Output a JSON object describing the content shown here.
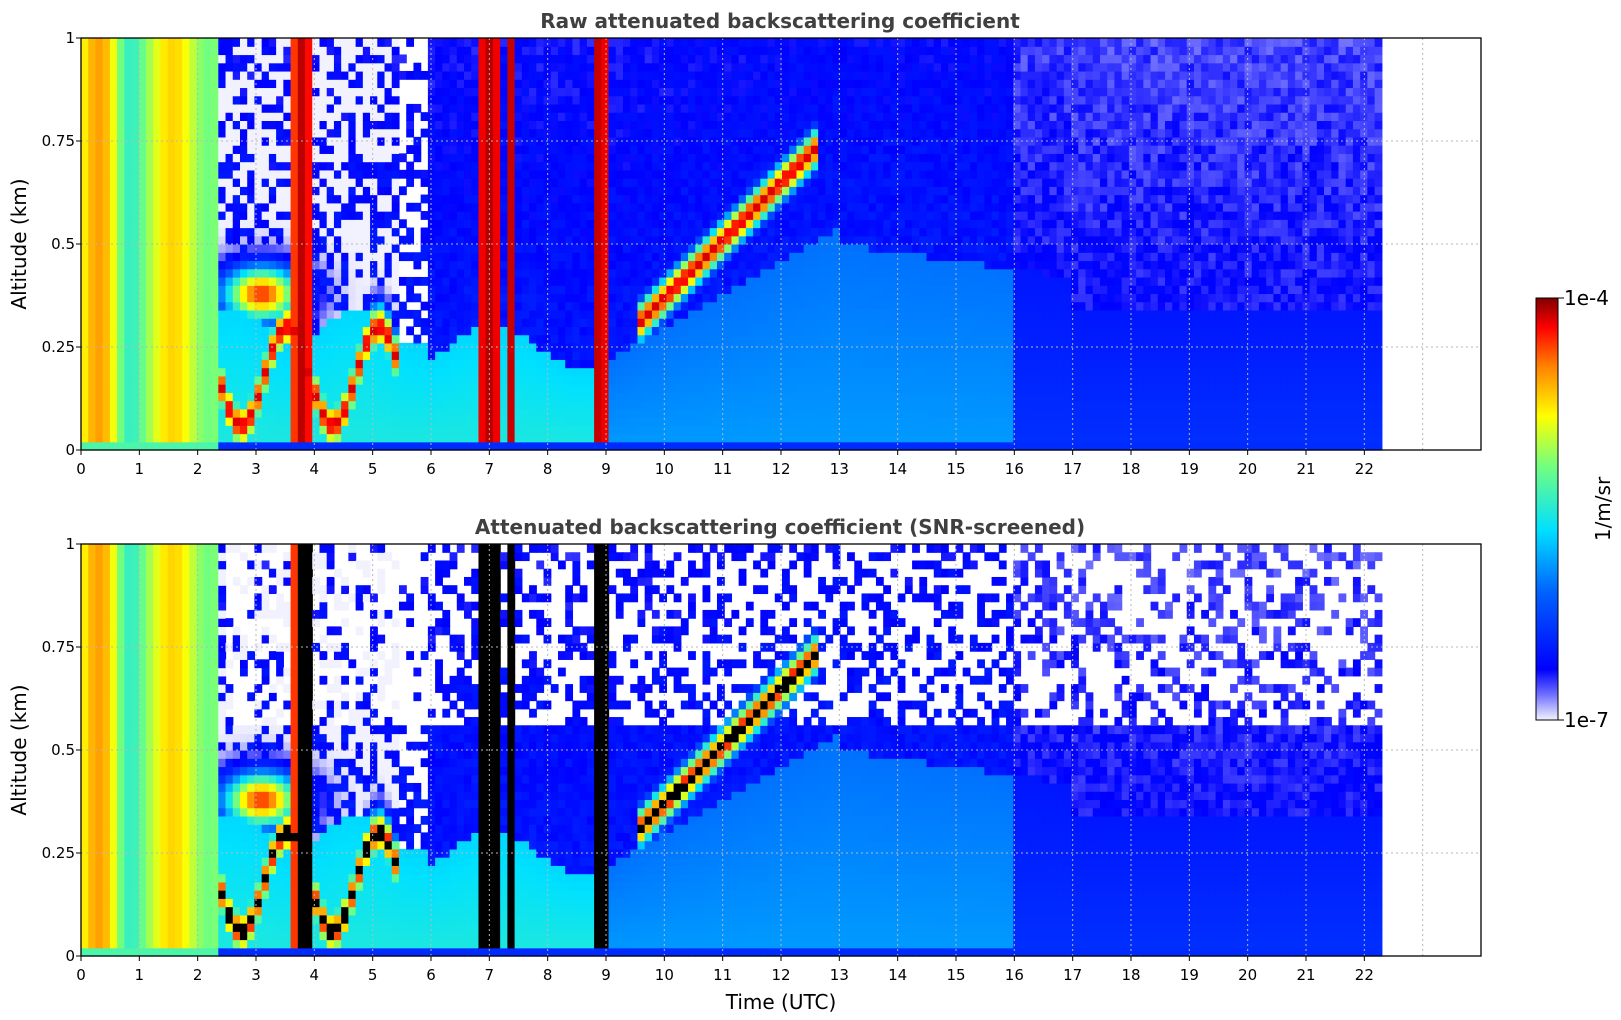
{
  "chart_data": [
    {
      "type": "heatmap",
      "title": "Raw attenuated backscattering coefficient",
      "xlabel": "",
      "ylabel": "Altitude (km)",
      "xlim": [
        0,
        24
      ],
      "ylim": [
        0,
        1
      ],
      "x_ticks": [
        "0",
        "1",
        "2",
        "3",
        "4",
        "5",
        "6",
        "7",
        "8",
        "9",
        "10",
        "11",
        "12",
        "13",
        "14",
        "15",
        "16",
        "17",
        "18",
        "19",
        "20",
        "21",
        "22"
      ],
      "y_ticks": [
        "0",
        "0.25",
        "0.5",
        "0.75",
        "1"
      ],
      "data_end_hour": 22.3,
      "grid": true,
      "screened": false,
      "colormap": "jet",
      "colorbar": {
        "label": "1/m/sr",
        "min_label": "1e-7",
        "max_label": "1e-4",
        "scale": "log"
      }
    },
    {
      "type": "heatmap",
      "title": "Attenuated backscattering coefficient (SNR-screened)",
      "xlabel": "Time (UTC)",
      "ylabel": "Altitude (km)",
      "xlim": [
        0,
        24
      ],
      "ylim": [
        0,
        1
      ],
      "x_ticks": [
        "0",
        "1",
        "2",
        "3",
        "4",
        "5",
        "6",
        "7",
        "8",
        "9",
        "10",
        "11",
        "12",
        "13",
        "14",
        "15",
        "16",
        "17",
        "18",
        "19",
        "20",
        "21",
        "22"
      ],
      "y_ticks": [
        "0",
        "0.25",
        "0.5",
        "0.75",
        "1"
      ],
      "data_end_hour": 22.3,
      "grid": true,
      "screened": true,
      "colormap": "jet",
      "colorbar": {
        "label": "1/m/sr",
        "min_label": "1e-7",
        "max_label": "1e-4",
        "scale": "log"
      }
    }
  ]
}
